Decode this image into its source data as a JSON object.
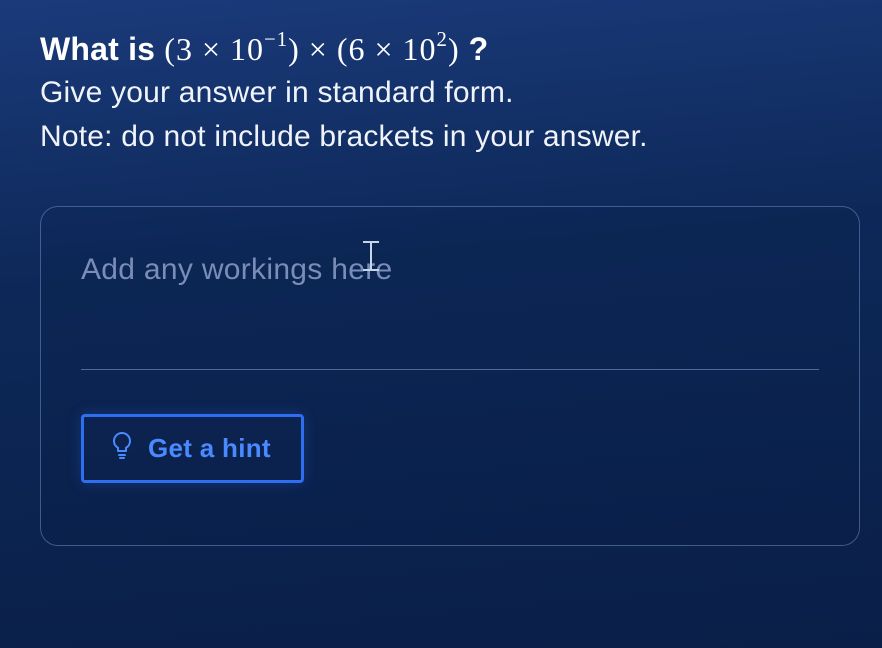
{
  "question": {
    "prefix": "What is  ",
    "expression_html": "(3 × 10<sup>−1</sup>) × (6 × 10<sup>2</sup>)",
    "suffix": " ?",
    "instruction1": "Give your answer in standard form.",
    "instruction2": "Note: do not include brackets in your answer."
  },
  "work_panel": {
    "placeholder": "Add any workings here"
  },
  "hint_button": {
    "label": "Get a hint"
  },
  "colors": {
    "background_top": "#1a3a7a",
    "background_bottom": "#0a1f48",
    "text_primary": "#ffffff",
    "text_muted": "#7a8db8",
    "accent_blue": "#2f6ef0",
    "accent_blue_text": "#4a8aff",
    "panel_border": "rgba(130,160,220,0.45)",
    "divider": "rgba(150,175,220,0.5)"
  }
}
